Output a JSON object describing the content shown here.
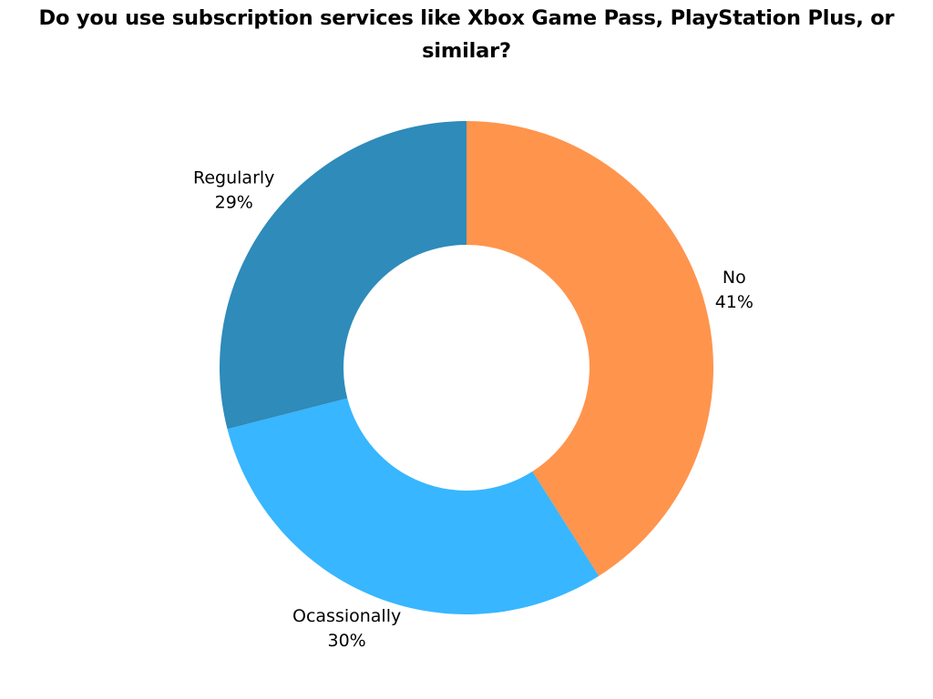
{
  "chart_data": {
    "type": "pie",
    "donut": true,
    "title": "Do you use subscription services like Xbox Game Pass, PlayStation Plus, or similar?",
    "slices": [
      {
        "label": "No",
        "value": 41,
        "value_label": "41%",
        "color": "#FF944D"
      },
      {
        "label": "Ocassionally",
        "value": 30,
        "value_label": "30%",
        "color": "#38B6FF"
      },
      {
        "label": "Regularly",
        "value": 29,
        "value_label": "29%",
        "color": "#2E8BBA"
      }
    ],
    "start": "top",
    "direction": "clockwise",
    "legend": "none",
    "data_labels": "outside"
  }
}
